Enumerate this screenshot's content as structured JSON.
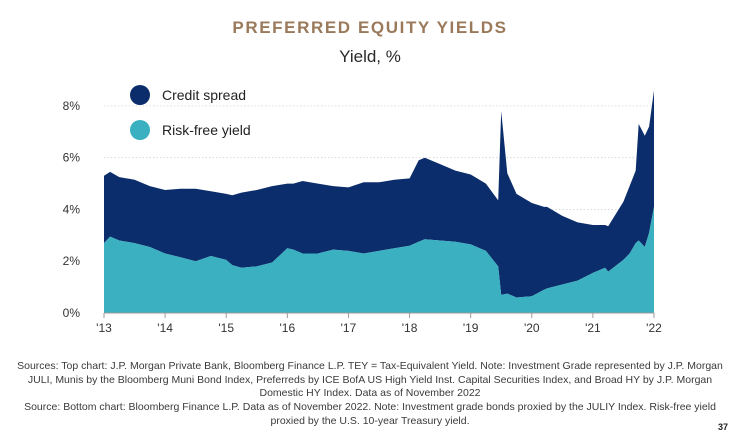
{
  "page_title": "PREFERRED EQUITY YIELDS",
  "chart_subtitle": "Yield, %",
  "legend": {
    "credit_spread": "Credit spread",
    "risk_free": "Risk-free yield"
  },
  "colors": {
    "credit_spread": "#0b2d6b",
    "risk_free": "#3ab0c0",
    "title": "#9a7a5a"
  },
  "sources": [
    "Sources: Top chart: J.P. Morgan Private Bank, Bloomberg Finance L.P. TEY = Tax-Equivalent Yield. Note: Investment Grade represented by J.P. Morgan",
    "JULI, Munis by the Bloomberg Muni Bond Index, Preferreds by ICE BofA US High Yield Inst. Capital Securities Index, and Broad HY by J.P. Morgan",
    "Domestic HY Index. Data as of November 2022",
    "Source: Bottom chart: Bloomberg Finance L.P. Data as of November 2022. Note: Investment grade bonds proxied by the JULIY Index. Risk-free yield",
    "proxied by the U.S. 10-year Treasury yield."
  ],
  "page_number": "37",
  "chart_data": {
    "type": "area",
    "title": "PREFERRED EQUITY YIELDS",
    "ylabel": "Yield, %",
    "xlabel": "",
    "xlim": [
      2013.0,
      2022.0
    ],
    "ylim": [
      0,
      9
    ],
    "x_ticks": [
      2013,
      2014,
      2015,
      2016,
      2017,
      2018,
      2019,
      2020,
      2021,
      2022
    ],
    "x_tick_labels": [
      "'13",
      "'14",
      "'15",
      "'16",
      "'17",
      "'18",
      "'19",
      "'20",
      "'21",
      "'22"
    ],
    "y_ticks": [
      0,
      2,
      4,
      6,
      8
    ],
    "y_tick_labels": [
      "0%",
      "2%",
      "4%",
      "6%",
      "8%"
    ],
    "stacked": true,
    "x": [
      2013.0,
      2013.1,
      2013.25,
      2013.5,
      2013.75,
      2014.0,
      2014.25,
      2014.5,
      2014.75,
      2015.0,
      2015.1,
      2015.25,
      2015.5,
      2015.75,
      2016.0,
      2016.1,
      2016.25,
      2016.5,
      2016.75,
      2017.0,
      2017.25,
      2017.5,
      2017.75,
      2018.0,
      2018.15,
      2018.25,
      2018.5,
      2018.75,
      2019.0,
      2019.25,
      2019.45,
      2019.5,
      2019.6,
      2019.75,
      2020.0,
      2020.2,
      2020.25,
      2020.5,
      2020.75,
      2021.0,
      2021.2,
      2021.25,
      2021.5,
      2021.6,
      2021.7,
      2021.75,
      2021.85,
      2021.92,
      2022.0
    ],
    "series": [
      {
        "name": "Risk-free yield",
        "values": [
          2.7,
          2.95,
          2.8,
          2.7,
          2.55,
          2.3,
          2.15,
          2.0,
          2.2,
          2.05,
          1.85,
          1.75,
          1.8,
          1.95,
          2.5,
          2.45,
          2.3,
          2.3,
          2.45,
          2.4,
          2.3,
          2.4,
          2.5,
          2.6,
          2.75,
          2.85,
          2.8,
          2.75,
          2.65,
          2.4,
          1.8,
          0.7,
          0.75,
          0.6,
          0.65,
          0.9,
          0.95,
          1.1,
          1.25,
          1.55,
          1.75,
          1.6,
          2.05,
          2.3,
          2.7,
          2.8,
          2.55,
          3.1,
          4.1
        ]
      },
      {
        "name": "Credit spread",
        "values": [
          2.6,
          2.5,
          2.45,
          2.45,
          2.35,
          2.45,
          2.65,
          2.8,
          2.5,
          2.55,
          2.7,
          2.9,
          2.95,
          2.95,
          2.5,
          2.55,
          2.8,
          2.7,
          2.45,
          2.45,
          2.75,
          2.65,
          2.65,
          2.6,
          3.15,
          3.15,
          2.95,
          2.75,
          2.7,
          2.6,
          2.55,
          7.1,
          4.65,
          4.0,
          3.6,
          3.2,
          3.15,
          2.65,
          2.25,
          1.85,
          1.65,
          1.75,
          2.25,
          2.6,
          2.8,
          4.5,
          4.3,
          4.1,
          4.5
        ]
      }
    ]
  }
}
